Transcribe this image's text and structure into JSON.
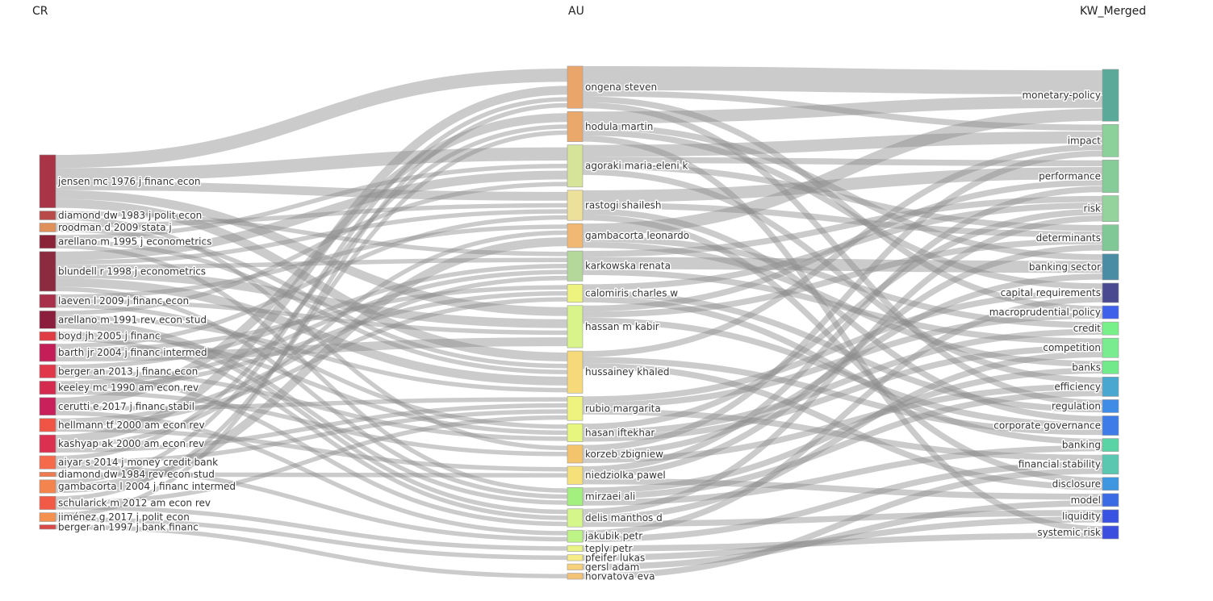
{
  "columns": {
    "cr": "CR",
    "au": "AU",
    "kw": "KW_Merged"
  },
  "nodes": {
    "cr": [
      {
        "id": "cr0",
        "label": "jensen mc 1976 j financ econ",
        "color": "#a83446"
      },
      {
        "id": "cr1",
        "label": "diamond dw 1983 j polit econ",
        "color": "#b84a4a"
      },
      {
        "id": "cr2",
        "label": "roodman d 2009 stata j",
        "color": "#e0905a"
      },
      {
        "id": "cr3",
        "label": "arellano m 1995 j econometrics",
        "color": "#8b2338"
      },
      {
        "id": "cr4",
        "label": "blundell r 1998 j econometrics",
        "color": "#8c2a40"
      },
      {
        "id": "cr5",
        "label": "laeven l 2009 j financ econ",
        "color": "#a8304a"
      },
      {
        "id": "cr6",
        "label": "arellano m 1991 rev econ stud",
        "color": "#8a1e3c"
      },
      {
        "id": "cr7",
        "label": "boyd jh 2005 j financ",
        "color": "#e03c44"
      },
      {
        "id": "cr8",
        "label": "barth jr 2004 j financ intermed",
        "color": "#c41e58"
      },
      {
        "id": "cr9",
        "label": "berger an 2013 j financ econ",
        "color": "#e0384a"
      },
      {
        "id": "cr10",
        "label": "keeley mc 1990 am econ rev",
        "color": "#d42a50"
      },
      {
        "id": "cr11",
        "label": "cerutti e 2017 j financ stabil",
        "color": "#c8205a"
      },
      {
        "id": "cr12",
        "label": "hellmann tf 2000 am econ rev",
        "color": "#f05444"
      },
      {
        "id": "cr13",
        "label": "kashyap ak 2000 am econ rev",
        "color": "#dc3050"
      },
      {
        "id": "cr14",
        "label": "aiyar s 2014 j money credit bank",
        "color": "#f46a4a"
      },
      {
        "id": "cr15",
        "label": "diamond dw 1984 rev econ stud",
        "color": "#f07a50"
      },
      {
        "id": "cr16",
        "label": "gambacorta l 2004 j financ intermed",
        "color": "#f4844e"
      },
      {
        "id": "cr17",
        "label": "schularick m 2012 am econ rev",
        "color": "#f25a48"
      },
      {
        "id": "cr18",
        "label": "jiménez g 2017 j polit econ",
        "color": "#f49050"
      },
      {
        "id": "cr19",
        "label": "berger an 1997 j bank financ",
        "color": "#d84848"
      }
    ],
    "au": [
      {
        "id": "au0",
        "label": "ongena steven",
        "color": "#eaa66a"
      },
      {
        "id": "au1",
        "label": "hodula martin",
        "color": "#eaa86a"
      },
      {
        "id": "au2",
        "label": "agoraki maria-eleni k",
        "color": "#d6e49a"
      },
      {
        "id": "au3",
        "label": "rastogi shailesh",
        "color": "#ece09a"
      },
      {
        "id": "au4",
        "label": "gambacorta leonardo",
        "color": "#f0b872"
      },
      {
        "id": "au5",
        "label": "karkowska renata",
        "color": "#b4d89a"
      },
      {
        "id": "au6",
        "label": "calomiris charles w",
        "color": "#eef27e"
      },
      {
        "id": "au7",
        "label": "hassan m kabir",
        "color": "#d8f48a"
      },
      {
        "id": "au8",
        "label": "hussainey khaled",
        "color": "#f6da7a"
      },
      {
        "id": "au9",
        "label": "rubio margarita",
        "color": "#eef27e"
      },
      {
        "id": "au10",
        "label": "hasan iftekhar",
        "color": "#e6f67e"
      },
      {
        "id": "au11",
        "label": "korzeb zbigniew",
        "color": "#f4c46c"
      },
      {
        "id": "au12",
        "label": "niedziolka pawel",
        "color": "#f6e07a"
      },
      {
        "id": "au13",
        "label": "mirzaei ali",
        "color": "#a4f07e"
      },
      {
        "id": "au14",
        "label": "delis manthos d",
        "color": "#d4f68a"
      },
      {
        "id": "au15",
        "label": "jakubik petr",
        "color": "#bef486"
      },
      {
        "id": "au16",
        "label": "teply petr",
        "color": "#eaf486"
      },
      {
        "id": "au17",
        "label": "pfeifer lukas",
        "color": "#f6ec86"
      },
      {
        "id": "au18",
        "label": "gersl adam",
        "color": "#f6d07a"
      },
      {
        "id": "au19",
        "label": "horvatova eva",
        "color": "#f4c274"
      }
    ],
    "kw": [
      {
        "id": "kw0",
        "label": "monetary-policy",
        "color": "#5aaa9a"
      },
      {
        "id": "kw1",
        "label": "impact",
        "color": "#8cd09a"
      },
      {
        "id": "kw2",
        "label": "performance",
        "color": "#86cc98"
      },
      {
        "id": "kw3",
        "label": "risk",
        "color": "#94d49c"
      },
      {
        "id": "kw4",
        "label": "determinants",
        "color": "#80c896"
      },
      {
        "id": "kw5",
        "label": "banking sector",
        "color": "#4a8ca4"
      },
      {
        "id": "kw6",
        "label": "capital requirements",
        "color": "#4a4a90"
      },
      {
        "id": "kw7",
        "label": "macroprudential policy",
        "color": "#3e60ea"
      },
      {
        "id": "kw8",
        "label": "credit",
        "color": "#78f08a"
      },
      {
        "id": "kw9",
        "label": "competition",
        "color": "#7aec90"
      },
      {
        "id": "kw10",
        "label": "banks",
        "color": "#70ea8a"
      },
      {
        "id": "kw11",
        "label": "efficiency",
        "color": "#4aa8d0"
      },
      {
        "id": "kw12",
        "label": "regulation",
        "color": "#3e8ce6"
      },
      {
        "id": "kw13",
        "label": "corporate governance",
        "color": "#3e7ce8"
      },
      {
        "id": "kw14",
        "label": "banking",
        "color": "#5ad4a4"
      },
      {
        "id": "kw15",
        "label": "financial stability",
        "color": "#5ac8b0"
      },
      {
        "id": "kw16",
        "label": "disclosure",
        "color": "#3e96e0"
      },
      {
        "id": "kw17",
        "label": "model",
        "color": "#3a6ae4"
      },
      {
        "id": "kw18",
        "label": "liquidity",
        "color": "#3a52e2"
      },
      {
        "id": "kw19",
        "label": "systemic risk",
        "color": "#3c4ee0"
      }
    ]
  },
  "links": {
    "cr_au": [
      [
        0,
        0,
        3
      ],
      [
        0,
        2,
        3
      ],
      [
        0,
        8,
        2
      ],
      [
        0,
        7,
        2
      ],
      [
        0,
        3,
        2
      ],
      [
        1,
        5,
        1
      ],
      [
        1,
        11,
        1
      ],
      [
        2,
        3,
        1
      ],
      [
        2,
        8,
        1
      ],
      [
        3,
        2,
        1
      ],
      [
        3,
        8,
        1
      ],
      [
        3,
        13,
        1
      ],
      [
        4,
        2,
        2
      ],
      [
        4,
        8,
        2
      ],
      [
        4,
        7,
        2
      ],
      [
        4,
        3,
        1
      ],
      [
        4,
        13,
        1
      ],
      [
        4,
        5,
        1
      ],
      [
        5,
        4,
        1
      ],
      [
        5,
        7,
        1
      ],
      [
        5,
        10,
        1
      ],
      [
        6,
        2,
        1
      ],
      [
        6,
        8,
        1
      ],
      [
        6,
        13,
        1
      ],
      [
        6,
        14,
        1
      ],
      [
        7,
        10,
        1
      ],
      [
        7,
        14,
        1
      ],
      [
        8,
        7,
        2
      ],
      [
        8,
        3,
        1
      ],
      [
        8,
        6,
        1
      ],
      [
        9,
        10,
        1
      ],
      [
        9,
        14,
        1
      ],
      [
        9,
        5,
        1
      ],
      [
        10,
        6,
        1
      ],
      [
        10,
        5,
        1
      ],
      [
        10,
        11,
        1
      ],
      [
        11,
        1,
        2
      ],
      [
        11,
        9,
        1
      ],
      [
        11,
        15,
        1
      ],
      [
        12,
        6,
        1
      ],
      [
        12,
        12,
        1
      ],
      [
        12,
        5,
        1
      ],
      [
        13,
        0,
        2
      ],
      [
        13,
        4,
        1
      ],
      [
        13,
        9,
        1
      ],
      [
        14,
        1,
        1
      ],
      [
        14,
        15,
        1
      ],
      [
        14,
        9,
        1
      ],
      [
        15,
        12,
        1
      ],
      [
        16,
        4,
        2
      ],
      [
        16,
        0,
        1
      ],
      [
        17,
        1,
        1
      ],
      [
        17,
        9,
        1
      ],
      [
        17,
        16,
        1
      ],
      [
        18,
        0,
        1
      ],
      [
        18,
        17,
        1
      ],
      [
        19,
        19,
        1
      ]
    ],
    "au_kw": [
      [
        0,
        0,
        4
      ],
      [
        0,
        12,
        1
      ],
      [
        0,
        7,
        1
      ],
      [
        0,
        1,
        1
      ],
      [
        1,
        0,
        2
      ],
      [
        1,
        6,
        1
      ],
      [
        1,
        5,
        1
      ],
      [
        1,
        19,
        1
      ],
      [
        2,
        1,
        2
      ],
      [
        2,
        2,
        1
      ],
      [
        2,
        4,
        1
      ],
      [
        2,
        11,
        1
      ],
      [
        3,
        2,
        2
      ],
      [
        3,
        13,
        1
      ],
      [
        3,
        16,
        1
      ],
      [
        3,
        4,
        1
      ],
      [
        4,
        0,
        2
      ],
      [
        4,
        8,
        1
      ],
      [
        4,
        10,
        1
      ],
      [
        5,
        5,
        2
      ],
      [
        5,
        9,
        1
      ],
      [
        5,
        3,
        1
      ],
      [
        6,
        3,
        1
      ],
      [
        6,
        12,
        1
      ],
      [
        6,
        14,
        1
      ],
      [
        7,
        2,
        1
      ],
      [
        7,
        13,
        1
      ],
      [
        7,
        4,
        1
      ],
      [
        8,
        16,
        1
      ],
      [
        8,
        13,
        1
      ],
      [
        8,
        1,
        1
      ],
      [
        9,
        7,
        1
      ],
      [
        9,
        15,
        1
      ],
      [
        9,
        6,
        1
      ],
      [
        10,
        3,
        1
      ],
      [
        10,
        9,
        1
      ],
      [
        10,
        8,
        1
      ],
      [
        11,
        5,
        1
      ],
      [
        11,
        1,
        1
      ],
      [
        11,
        11,
        1
      ],
      [
        12,
        4,
        1
      ],
      [
        12,
        17,
        1
      ],
      [
        12,
        2,
        1
      ],
      [
        13,
        11,
        1
      ],
      [
        13,
        10,
        1
      ],
      [
        13,
        14,
        1
      ],
      [
        14,
        3,
        1
      ],
      [
        14,
        9,
        1
      ],
      [
        14,
        18,
        1
      ],
      [
        15,
        6,
        1
      ],
      [
        15,
        15,
        1
      ],
      [
        16,
        19,
        1
      ],
      [
        17,
        18,
        1
      ],
      [
        18,
        17,
        1
      ],
      [
        19,
        15,
        1
      ]
    ]
  }
}
